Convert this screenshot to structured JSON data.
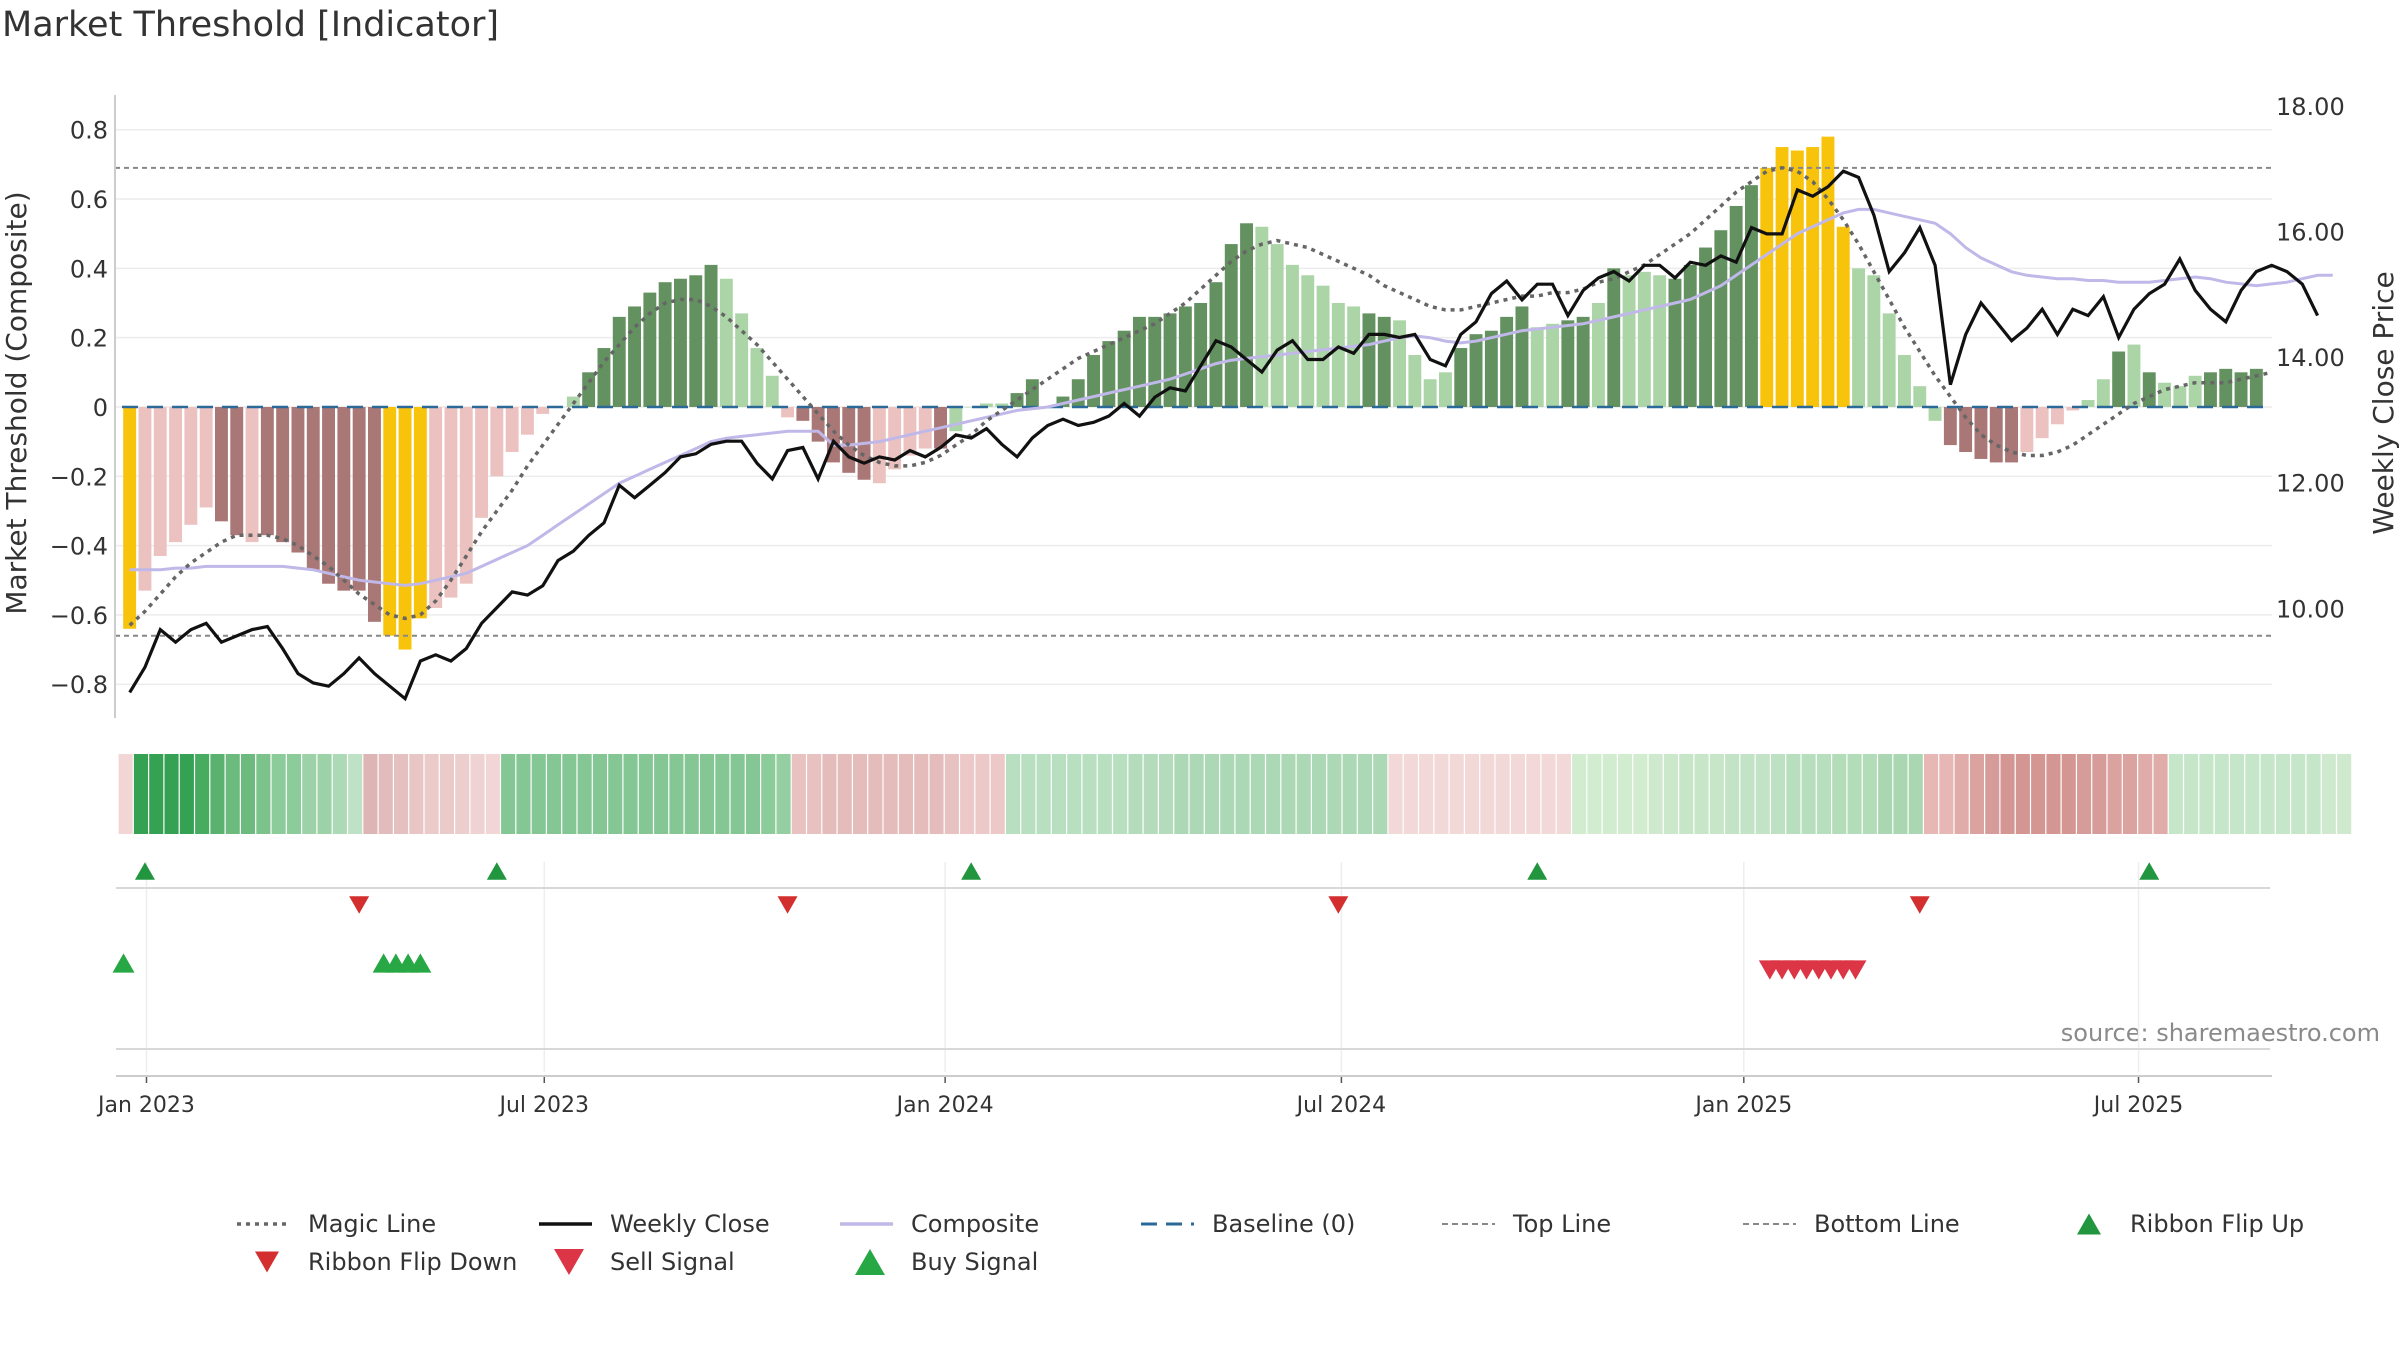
{
  "chart_data": {
    "type": "bar",
    "title": "Market Threshold [Indicator]",
    "ylabel": "Market Threshold (Composite)",
    "y2label": "Weekly Close Price",
    "source": "source: sharemaestro.com",
    "ylim": [
      -0.86,
      0.88
    ],
    "y2lim": [
      8.7,
      18.3
    ],
    "yticks": [
      0.8,
      0.6,
      0.4,
      0.2,
      0,
      -0.2,
      -0.4,
      -0.6,
      -0.8
    ],
    "ytick_labels": [
      "0.8",
      "0.6",
      "0.4",
      "0.2",
      "0",
      "−0.2",
      "−0.4",
      "−0.6",
      "−0.8"
    ],
    "y2ticks": [
      18,
      16,
      14,
      12,
      10
    ],
    "y2tick_labels": [
      "18.00",
      "16.00",
      "14.00",
      "12.00",
      "10.00"
    ],
    "xticks": [
      {
        "label": "Jan 2023",
        "x": 1.1
      },
      {
        "label": "Jul 2023",
        "x": 27.1
      },
      {
        "label": "Jan 2024",
        "x": 53.3
      },
      {
        "label": "Jul 2024",
        "x": 79.2
      },
      {
        "label": "Jan 2025",
        "x": 105.5
      },
      {
        "label": "Jul 2025",
        "x": 131.3
      }
    ],
    "top_line": 0.69,
    "bottom_line": -0.66,
    "baseline": 0,
    "grid": true,
    "legend_position": "bottom",
    "bars": [
      -0.64,
      -0.53,
      -0.43,
      -0.39,
      -0.34,
      -0.29,
      -0.33,
      -0.37,
      -0.39,
      -0.37,
      -0.39,
      -0.42,
      -0.47,
      -0.51,
      -0.53,
      -0.53,
      -0.62,
      -0.66,
      -0.7,
      -0.61,
      -0.58,
      -0.55,
      -0.51,
      -0.32,
      -0.2,
      -0.13,
      -0.08,
      -0.02,
      0.0,
      0.03,
      0.1,
      0.17,
      0.26,
      0.29,
      0.33,
      0.36,
      0.37,
      0.38,
      0.41,
      0.37,
      0.27,
      0.17,
      0.09,
      -0.03,
      -0.04,
      -0.1,
      -0.16,
      -0.19,
      -0.21,
      -0.22,
      -0.18,
      -0.14,
      -0.12,
      -0.12,
      -0.07,
      0.0,
      0.01,
      0.01,
      0.04,
      0.08,
      0.0,
      0.03,
      0.08,
      0.15,
      0.19,
      0.22,
      0.26,
      0.26,
      0.27,
      0.29,
      0.3,
      0.36,
      0.47,
      0.53,
      0.52,
      0.47,
      0.41,
      0.38,
      0.35,
      0.3,
      0.29,
      0.27,
      0.26,
      0.25,
      0.15,
      0.08,
      0.1,
      0.17,
      0.21,
      0.22,
      0.26,
      0.29,
      0.23,
      0.24,
      0.25,
      0.26,
      0.3,
      0.4,
      0.38,
      0.39,
      0.38,
      0.37,
      0.41,
      0.46,
      0.51,
      0.58,
      0.64,
      0.69,
      0.75,
      0.74,
      0.75,
      0.78,
      0.52,
      0.4,
      0.38,
      0.27,
      0.15,
      0.06,
      -0.04,
      -0.11,
      -0.13,
      -0.15,
      -0.16,
      -0.16,
      -0.13,
      -0.09,
      -0.05,
      -0.01,
      0.02,
      0.08,
      0.16,
      0.18,
      0.1,
      0.07,
      0.06,
      0.09,
      0.1,
      0.11,
      0.1,
      0.11
    ],
    "bar_classes": [
      "gold",
      "pink",
      "pink",
      "pink",
      "pink",
      "pink",
      "maroon",
      "maroon",
      "pink",
      "maroon",
      "maroon",
      "maroon",
      "maroon",
      "maroon",
      "maroon",
      "maroon",
      "maroon",
      "gold",
      "gold",
      "gold",
      "pink",
      "pink",
      "pink",
      "pink",
      "pink",
      "pink",
      "pink",
      "pink",
      "light",
      "light",
      "dark",
      "dark",
      "dark",
      "dark",
      "dark",
      "dark",
      "dark",
      "dark",
      "dark",
      "light",
      "light",
      "light",
      "light",
      "pink",
      "maroon",
      "maroon",
      "maroon",
      "maroon",
      "maroon",
      "pink",
      "pink",
      "pink",
      "pink",
      "maroon",
      "light",
      "light",
      "light",
      "light",
      "dark",
      "dark",
      "dark",
      "dark",
      "dark",
      "dark",
      "dark",
      "dark",
      "dark",
      "dark",
      "dark",
      "dark",
      "dark",
      "dark",
      "dark",
      "dark",
      "light",
      "light",
      "light",
      "light",
      "light",
      "light",
      "light",
      "dark",
      "dark",
      "light",
      "light",
      "light",
      "light",
      "dark",
      "dark",
      "dark",
      "dark",
      "dark",
      "light",
      "light",
      "dark",
      "dark",
      "light",
      "dark",
      "light",
      "light",
      "light",
      "dark",
      "dark",
      "dark",
      "dark",
      "dark",
      "dark",
      "gold",
      "gold",
      "gold",
      "gold",
      "gold",
      "gold",
      "light",
      "light",
      "light",
      "light",
      "light",
      "light",
      "maroon",
      "maroon",
      "maroon",
      "maroon",
      "maroon",
      "pink",
      "pink",
      "pink",
      "pink",
      "light",
      "light",
      "dark",
      "light",
      "dark",
      "light",
      "light",
      "light",
      "dark",
      "dark",
      "dark",
      "dark",
      "light",
      "dark"
    ],
    "series": [
      {
        "name": "Magic Line",
        "values": [
          -0.63,
          -0.59,
          -0.54,
          -0.49,
          -0.45,
          -0.42,
          -0.39,
          -0.37,
          -0.37,
          -0.37,
          -0.38,
          -0.4,
          -0.43,
          -0.46,
          -0.5,
          -0.54,
          -0.57,
          -0.6,
          -0.61,
          -0.6,
          -0.56,
          -0.5,
          -0.43,
          -0.36,
          -0.3,
          -0.24,
          -0.17,
          -0.11,
          -0.05,
          0.01,
          0.07,
          0.13,
          0.18,
          0.23,
          0.27,
          0.3,
          0.31,
          0.31,
          0.29,
          0.26,
          0.22,
          0.18,
          0.13,
          0.08,
          0.03,
          -0.02,
          -0.07,
          -0.11,
          -0.14,
          -0.16,
          -0.17,
          -0.17,
          -0.16,
          -0.14,
          -0.11,
          -0.08,
          -0.04,
          -0.01,
          0.02,
          0.05,
          0.08,
          0.11,
          0.14,
          0.16,
          0.18,
          0.2,
          0.22,
          0.24,
          0.27,
          0.3,
          0.34,
          0.38,
          0.42,
          0.45,
          0.47,
          0.48,
          0.47,
          0.46,
          0.44,
          0.42,
          0.4,
          0.38,
          0.35,
          0.33,
          0.31,
          0.29,
          0.28,
          0.28,
          0.29,
          0.3,
          0.31,
          0.32,
          0.32,
          0.33,
          0.33,
          0.34,
          0.36,
          0.37,
          0.39,
          0.41,
          0.44,
          0.47,
          0.5,
          0.54,
          0.58,
          0.62,
          0.65,
          0.68,
          0.69,
          0.68,
          0.65,
          0.6,
          0.54,
          0.47,
          0.39,
          0.31,
          0.23,
          0.16,
          0.09,
          0.03,
          -0.03,
          -0.08,
          -0.11,
          -0.13,
          -0.14,
          -0.14,
          -0.13,
          -0.11,
          -0.08,
          -0.05,
          -0.02,
          0.01,
          0.03,
          0.05,
          0.06,
          0.07,
          0.07,
          0.07,
          0.08,
          0.09,
          0.1
        ]
      },
      {
        "name": "Weekly Close",
        "values": [
          8.9,
          9.3,
          9.9,
          9.7,
          9.9,
          10.0,
          9.7,
          9.8,
          9.9,
          9.95,
          9.6,
          9.2,
          9.05,
          9.0,
          9.2,
          9.45,
          9.2,
          9.0,
          8.8,
          9.4,
          9.5,
          9.4,
          9.6,
          10.0,
          10.25,
          10.5,
          10.45,
          10.6,
          11.0,
          11.15,
          11.4,
          11.6,
          12.2,
          12.0,
          12.2,
          12.4,
          12.65,
          12.7,
          12.85,
          12.9,
          12.9,
          12.55,
          12.3,
          12.75,
          12.8,
          12.3,
          12.9,
          12.65,
          12.55,
          12.65,
          12.6,
          12.75,
          12.65,
          12.8,
          13.0,
          12.95,
          13.1,
          12.85,
          12.65,
          12.95,
          13.15,
          13.25,
          13.15,
          13.2,
          13.3,
          13.5,
          13.3,
          13.6,
          13.75,
          13.7,
          14.1,
          14.5,
          14.4,
          14.2,
          14.0,
          14.35,
          14.5,
          14.2,
          14.2,
          14.4,
          14.3,
          14.6,
          14.6,
          14.55,
          14.6,
          14.2,
          14.1,
          14.6,
          14.8,
          15.25,
          15.45,
          15.15,
          15.4,
          15.4,
          14.9,
          15.3,
          15.5,
          15.6,
          15.45,
          15.7,
          15.7,
          15.5,
          15.75,
          15.7,
          15.85,
          15.75,
          16.3,
          16.2,
          16.2,
          16.9,
          16.8,
          16.95,
          17.2,
          17.1,
          16.5,
          15.6,
          15.9,
          16.3,
          15.7,
          13.8,
          14.6,
          15.1,
          14.8,
          14.5,
          14.7,
          15.0,
          14.6,
          15.0,
          14.9,
          15.2,
          14.55,
          15.0,
          15.25,
          15.4,
          15.8,
          15.3,
          15.0,
          14.8,
          15.3,
          15.6,
          15.7,
          15.6,
          15.4,
          14.9
        ]
      },
      {
        "name": "Composite",
        "values": [
          -0.47,
          -0.47,
          -0.47,
          -0.465,
          -0.465,
          -0.46,
          -0.46,
          -0.46,
          -0.46,
          -0.46,
          -0.46,
          -0.465,
          -0.47,
          -0.48,
          -0.49,
          -0.5,
          -0.505,
          -0.51,
          -0.515,
          -0.51,
          -0.5,
          -0.49,
          -0.48,
          -0.46,
          -0.44,
          -0.42,
          -0.4,
          -0.37,
          -0.34,
          -0.31,
          -0.28,
          -0.25,
          -0.22,
          -0.2,
          -0.18,
          -0.16,
          -0.14,
          -0.12,
          -0.1,
          -0.09,
          -0.085,
          -0.08,
          -0.075,
          -0.07,
          -0.07,
          -0.07,
          -0.11,
          -0.11,
          -0.105,
          -0.1,
          -0.09,
          -0.08,
          -0.07,
          -0.06,
          -0.05,
          -0.04,
          -0.03,
          -0.02,
          -0.01,
          -0.005,
          0.0,
          0.01,
          0.02,
          0.03,
          0.04,
          0.05,
          0.06,
          0.07,
          0.08,
          0.095,
          0.11,
          0.125,
          0.135,
          0.14,
          0.145,
          0.15,
          0.155,
          0.16,
          0.165,
          0.17,
          0.175,
          0.18,
          0.19,
          0.2,
          0.205,
          0.2,
          0.19,
          0.185,
          0.19,
          0.2,
          0.21,
          0.22,
          0.225,
          0.23,
          0.235,
          0.24,
          0.25,
          0.26,
          0.27,
          0.28,
          0.29,
          0.3,
          0.31,
          0.33,
          0.35,
          0.38,
          0.41,
          0.44,
          0.47,
          0.5,
          0.52,
          0.54,
          0.56,
          0.57,
          0.57,
          0.56,
          0.55,
          0.54,
          0.53,
          0.5,
          0.46,
          0.43,
          0.41,
          0.39,
          0.38,
          0.375,
          0.37,
          0.37,
          0.365,
          0.365,
          0.36,
          0.36,
          0.36,
          0.365,
          0.37,
          0.375,
          0.37,
          0.36,
          0.355,
          0.35,
          0.355,
          0.36,
          0.37,
          0.38,
          0.38
        ]
      }
    ],
    "ribbon_colors": [
      "#f2d6d6",
      "#35a153",
      "#35a153",
      "#35a153",
      "#35a153",
      "#47ac60",
      "#5bb16f",
      "#6cba7e",
      "#6cba7e",
      "#7bc38b",
      "#8ccb9a",
      "#8ccb9a",
      "#9dd2a9",
      "#9dd2a9",
      "#acd9b6",
      "#bfe2c6",
      "#ddb5b5",
      "#e2bcbc",
      "#e5c0c0",
      "#e8c6c6",
      "#ebcaca",
      "#ebcaca",
      "#edcece",
      "#efd2d2",
      "#f2d6d6",
      "#84c795",
      "#84c795",
      "#84c795",
      "#84c795",
      "#84c795",
      "#84c795",
      "#84c795",
      "#84c795",
      "#84c795",
      "#84c795",
      "#84c795",
      "#84c795",
      "#84c795",
      "#84c795",
      "#84c795",
      "#84c795",
      "#84c795",
      "#8ccb9a",
      "#95cea1",
      "#e8c1c1",
      "#e8c1c1",
      "#e5bcbc",
      "#e5bcbc",
      "#e5bcbc",
      "#e5bcbc",
      "#e5bcbc",
      "#e5bcbc",
      "#e5bcbc",
      "#e5bcbc",
      "#e8c1c1",
      "#ecc8c8",
      "#ecc8c8",
      "#ecc8c8",
      "#b9dfc1",
      "#b9dfc1",
      "#b9dfc1",
      "#b9dfc1",
      "#b9dfc1",
      "#b9dfc1",
      "#b9dfc1",
      "#b9dfc1",
      "#b4dcbc",
      "#b4dcbc",
      "#b4dcbc",
      "#acd8b6",
      "#acd8b6",
      "#acd8b6",
      "#acd8b6",
      "#acd8b6",
      "#acd8b6",
      "#acd8b6",
      "#acd8b6",
      "#acd8b6",
      "#acd8b6",
      "#acd8b6",
      "#acd8b6",
      "#acd8b6",
      "#acd8b6",
      "#f3d8d8",
      "#f3d8d8",
      "#f3d8d8",
      "#f3d8d8",
      "#f3d8d8",
      "#f3d8d8",
      "#f3d8d8",
      "#f3d8d8",
      "#f3d8d8",
      "#f3d8d8",
      "#f3d8d8",
      "#f3d8d8",
      "#d2eccf",
      "#d2eccf",
      "#d2eccf",
      "#d2eccf",
      "#d2eccf",
      "#cfe9cf",
      "#cbe8cb",
      "#c7e6c8",
      "#c7e6c8",
      "#c7e6c8",
      "#c2e3c5",
      "#c2e3c5",
      "#c2e3c5",
      "#bde1c2",
      "#b8dfbd",
      "#b8dfbd",
      "#b8dfbd",
      "#b3dcb9",
      "#b3dcb9",
      "#b3dcb9",
      "#aad7b1",
      "#aad7b1",
      "#aad7b1",
      "#e6b7b4",
      "#e6b7b4",
      "#e0aca9",
      "#dba3a0",
      "#d69c99",
      "#d39693",
      "#d39693",
      "#d39693",
      "#d39693",
      "#d39693",
      "#d69c99",
      "#d69c99",
      "#dba3a0",
      "#dba3a0",
      "#e0aca9",
      "#e0aca9",
      "#c6e6ca",
      "#c6e6ca",
      "#c6e6ca",
      "#c6e6ca",
      "#c6e6ca",
      "#c6e6ca",
      "#c6e6ca",
      "#c6e6ca",
      "#c6e6ca",
      "#c6e6ca",
      "#cfe9cf",
      "#cfe9cf"
    ],
    "ribbon_flip_up": [
      1,
      24,
      55,
      92,
      132
    ],
    "ribbon_flip_down": [
      15,
      43,
      79,
      117
    ],
    "buy_signals": [
      -0.4,
      16.6,
      17.4,
      18.2,
      19.0
    ],
    "sell_signals": [
      107.2,
      108.0,
      108.8,
      109.6,
      110.4,
      111.2,
      112.0,
      112.8
    ],
    "legend": [
      {
        "label": "Magic Line",
        "kind": "dotted-line",
        "color": "#666666"
      },
      {
        "label": "Weekly Close",
        "kind": "solid-line",
        "color": "#111111"
      },
      {
        "label": "Composite",
        "kind": "solid-line",
        "color": "#c0b8e8"
      },
      {
        "label": "Baseline (0)",
        "kind": "dashed-line",
        "color": "#2b6a98"
      },
      {
        "label": "Top Line",
        "kind": "dashed-thin",
        "color": "#888888"
      },
      {
        "label": "Bottom Line",
        "kind": "dashed-thin",
        "color": "#888888"
      },
      {
        "label": "Ribbon Flip Up",
        "kind": "triangle-up",
        "color": "#22963f"
      },
      {
        "label": "Ribbon Flip Down",
        "kind": "triangle-down",
        "color": "#d32f2f"
      },
      {
        "label": "Sell Signal",
        "kind": "triangle-down-large",
        "color": "#dc3545"
      },
      {
        "label": "Buy Signal",
        "kind": "triangle-up-large",
        "color": "#28a745"
      }
    ],
    "colors": {
      "bar_pink": "#ecc2c0",
      "bar_maroon": "#a97775",
      "bar_gold": "#f8c30b",
      "bar_dark": "#639160",
      "bar_light": "#acd5a7",
      "magic_line": "#666666",
      "weekly_close": "#111111",
      "composite": "#c0b8e8",
      "baseline": "#2b6a98",
      "top_bottom_line": "#888888",
      "flip_up": "#22963f",
      "flip_down": "#d32f2f",
      "buy": "#28a745",
      "sell": "#dc3545"
    }
  }
}
